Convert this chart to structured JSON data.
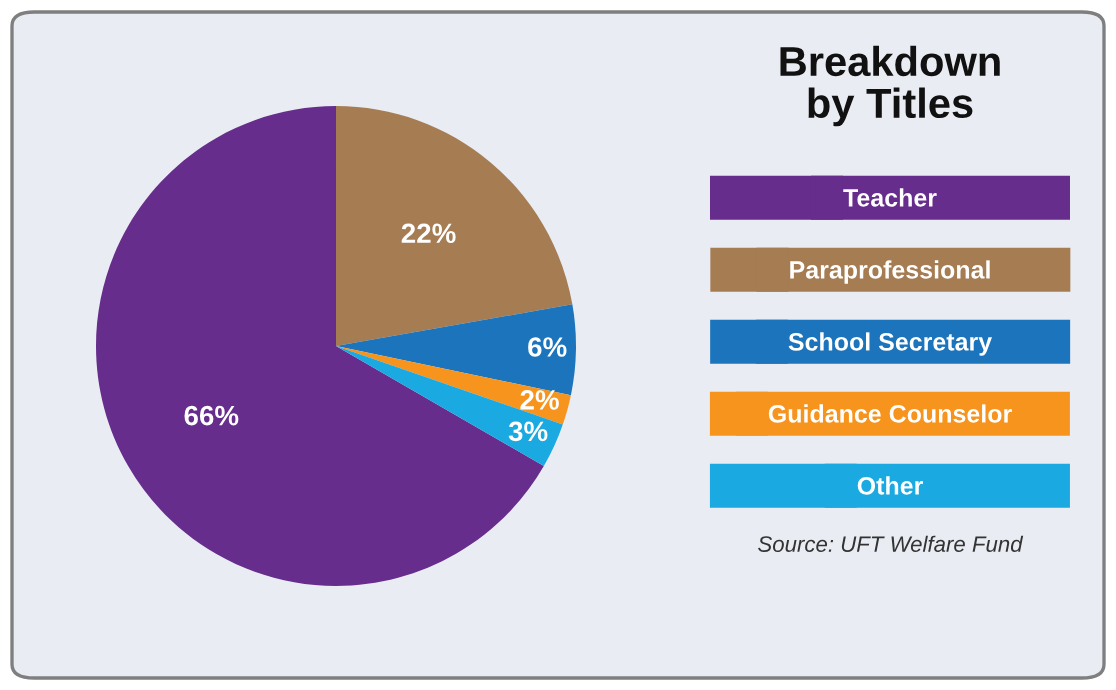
{
  "chart_data": {
    "type": "pie",
    "title": "Breakdown\nby Titles",
    "categories": [
      "Teacher",
      "Paraprofessional",
      "School Secretary",
      "Guidance Counselor",
      "Other"
    ],
    "values": [
      66,
      22,
      6,
      2,
      3
    ],
    "value_labels": [
      "66%",
      "22%",
      "6%",
      "2%",
      "3%"
    ],
    "colors": [
      "#662d8c",
      "#a67c52",
      "#1c75bc",
      "#f7941d",
      "#1ba9e1"
    ],
    "legend": "right",
    "annotations": [
      "Source: UFT Welfare Fund"
    ]
  }
}
